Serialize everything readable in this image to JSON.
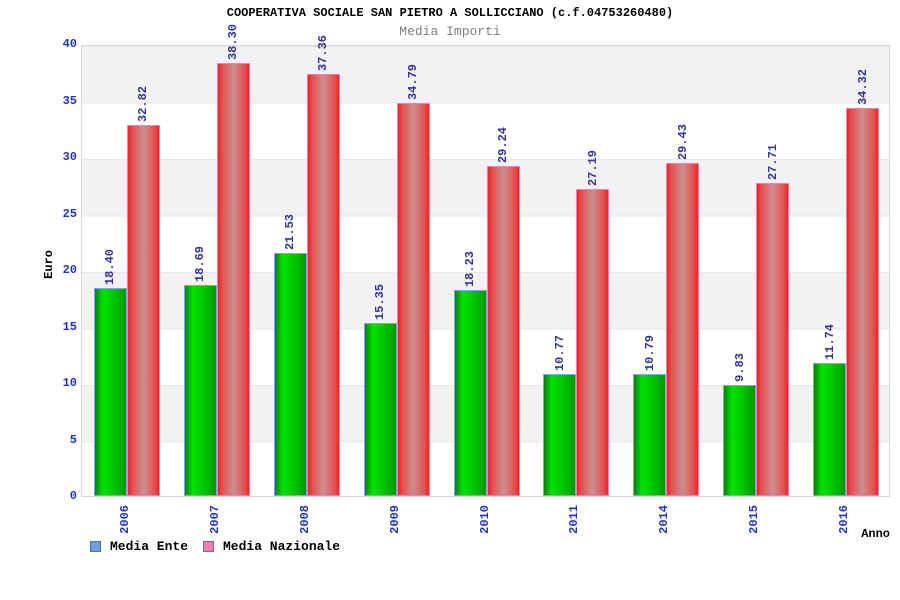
{
  "chart": {
    "title": "COOPERATIVA SOCIALE SAN PIETRO A SOLLICCIANO (c.f.04753260480)",
    "subtitle": "Media Importi",
    "ylabel": "Euro",
    "xlabel": "Anno",
    "colors": {
      "tick_label": "#2233cc",
      "value_label": "#333399",
      "subtitle": "#7e7e7e",
      "band_gray": "#f2f2f4",
      "plot_border": "#d4d4d4"
    }
  },
  "chart_data": {
    "type": "bar",
    "title": "Media Importi",
    "xlabel": "Anno",
    "ylabel": "Euro",
    "ylim": [
      0,
      40
    ],
    "yticks": [
      0,
      5,
      10,
      15,
      20,
      25,
      30,
      35,
      40
    ],
    "grid": "horizontal-bands-every-5",
    "legend_position": "bottom-left",
    "value_label_format": "2-decimals-rotated-90",
    "categories": [
      "2006",
      "2007",
      "2008",
      "2009",
      "2010",
      "2011",
      "2014",
      "2015",
      "2016"
    ],
    "series": [
      {
        "name": "Media Ente",
        "values": [
          18.4,
          18.69,
          21.53,
          15.35,
          18.23,
          10.77,
          10.79,
          9.83,
          11.74
        ],
        "bar_gradient": "linear-gradient(90deg,#098009 0%,#00e200 25%,#00cf00 50%,#00b400 78%,#079307 100%)",
        "bar_border": "#7fa8e0",
        "legend_color": "#67a0e4",
        "legend_border": "#4f74a8"
      },
      {
        "name": "Media Nazionale",
        "values": [
          32.82,
          38.3,
          37.36,
          34.79,
          29.24,
          27.19,
          29.43,
          27.71,
          34.32
        ],
        "bar_gradient": "linear-gradient(90deg,#ee2222 0%,#e65050 14%,#cc8e8e 50%,#e65050 86%,#ee2222 100%)",
        "bar_border": "#f27fb5",
        "legend_color": "#ec7fb2",
        "legend_border": "#9b5f7c"
      }
    ]
  }
}
